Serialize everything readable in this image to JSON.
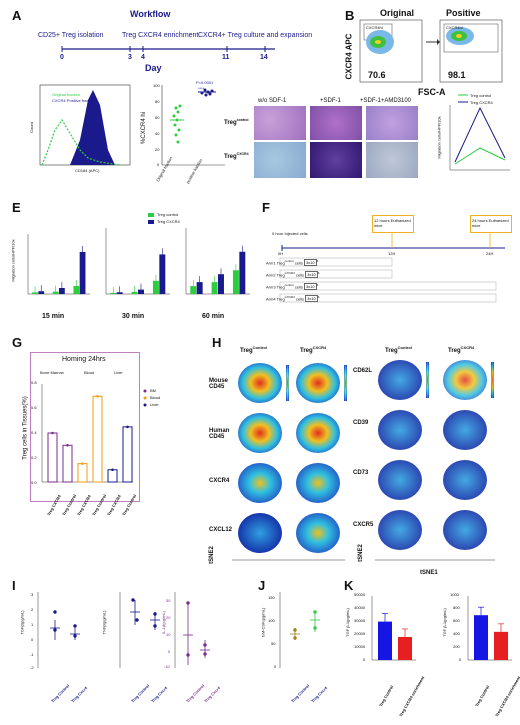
{
  "panels": {
    "A": {
      "label": "A",
      "workflow_title": "Workflow",
      "steps": [
        "CD25+ Treg isolation",
        "Treg CXCR4 enrichment",
        "CXCR4+ Treg culture and expansion"
      ],
      "ticks": [
        "0",
        "3",
        "4",
        "11",
        "14"
      ],
      "axis_label": "Day",
      "hist_legend": [
        "Original fraction",
        "CXCR4 Positive fraction"
      ],
      "hist_xlabel": "CD184 (APC)",
      "hist_ylabel": "Count",
      "scatter_ylabel": "%CXCR4 hi",
      "scatter_pval": "P<0.0001",
      "scatter_sig": "****",
      "scatter_groups": [
        "Original fraction",
        "positive fraction"
      ],
      "scatter_yticks": [
        "100",
        "80",
        "60",
        "40",
        "20",
        "0"
      ]
    },
    "B": {
      "label": "B",
      "titles": [
        "Original",
        "Positive"
      ],
      "ylabel": "CXCR4 APC",
      "xlabel": "FSC-A",
      "percents": [
        "70.6",
        "98.1"
      ],
      "gate_labels": [
        "CXCR4hi",
        "CXCR4hi"
      ],
      "conditions": [
        "w/o SDF-1",
        "+SDF-1",
        "+SDF-1+AMD3100"
      ],
      "row_labels": [
        "Treg",
        "Treg"
      ],
      "row_sups": [
        "control",
        "CXCR4"
      ],
      "legend": [
        "Treg control",
        "Treg CXCR4"
      ],
      "line_ylabel": "Migration cells/HPF/10x"
    },
    "E": {
      "label": "E",
      "legend": [
        "Treg control",
        "Treg CXCR4"
      ],
      "times": [
        "15 min",
        "30 min",
        "60 min"
      ],
      "ylabel": "Migration cells/HPF/10x",
      "sig": [
        "****",
        "****",
        "**",
        "****",
        "*",
        "***",
        "**",
        "*"
      ]
    },
    "F": {
      "label": "F",
      "inject_label": "0 hour Injected cells",
      "t12": "12 hours Euthanized mice",
      "t24": "24 hours Euthanized mice",
      "axis_ticks": [
        "0H",
        "12H",
        "24H"
      ],
      "arms": [
        "Arm1 Treg",
        "Arm2 Treg",
        "Arm3 Treg",
        "Arm4 Treg"
      ],
      "arm_sups": [
        "control",
        "CXCR4",
        "control",
        "CXCR4"
      ],
      "arm_cells": [
        "3x10",
        "3x10",
        "3x10",
        "3x10"
      ],
      "arm_exp": [
        "6",
        "6",
        "6",
        "6"
      ],
      "cells_suffix": "cells"
    },
    "G": {
      "label": "G",
      "title": "Homing 24hrs",
      "groups": [
        "Bone Marrow",
        "Blood",
        "Liver"
      ],
      "legend": [
        "BM",
        "Blood",
        "Liver"
      ],
      "ylabel": "Treg cells in Tissues(%)",
      "yticks": [
        "0.8",
        "0.6",
        "0.4",
        "0.2",
        "0.0"
      ],
      "xlabels": [
        "Treg CXCR4",
        "Treg Control",
        "Treg CXCR4",
        "Treg Control",
        "Treg CXCR4",
        "Treg Control"
      ]
    },
    "H": {
      "label": "H",
      "col_titles": [
        "Treg",
        "Treg",
        "Treg",
        "Treg"
      ],
      "col_sups": [
        "Control",
        "CXCR4",
        "Control",
        "CXCR4"
      ],
      "left_markers": [
        "Mouse CD45",
        "Human CD45",
        "CXCR4",
        "CXCL12"
      ],
      "right_markers": [
        "CD62L",
        "CD39",
        "CD73",
        "CXCR5"
      ],
      "ylabel": "tSNE2",
      "xlabel": "tSNE1"
    },
    "I": {
      "label": "I",
      "ylabels": [
        "TGFβ(pg/mL)",
        "TNFβ(pg/mL)",
        "IL-1β(pg/mL)"
      ],
      "xlabels": [
        "Treg Control",
        "Treg Cxcr4"
      ],
      "yticks_a": [
        "3",
        "2",
        "1",
        "0",
        "-1",
        "-2"
      ],
      "yticks_c": [
        "30",
        "20",
        "10",
        "0",
        "-10"
      ]
    },
    "J": {
      "label": "J",
      "ylabel": "GM-CSF(pg/mL)",
      "xlabels": [
        "Treg Control",
        "Treg Cxcr4"
      ],
      "yticks": [
        "150",
        "100",
        "50",
        "0"
      ]
    },
    "K": {
      "label": "K",
      "ylabels": [
        "TGF β-1(pg/mL)",
        "TGF β-1(pg/mL)"
      ],
      "xlabels": [
        "Treg Control",
        "Treg CXCR4 enrichment"
      ],
      "yticks_a": [
        "50000",
        "40000",
        "30000",
        "20000",
        "10000",
        "0"
      ],
      "yticks_b": [
        "1000",
        "800",
        "600",
        "400",
        "200",
        "0"
      ]
    }
  },
  "colors": {
    "navy": "#1a1a8c",
    "green": "#2ecc40",
    "purple": "#7b2d8b",
    "orange": "#f39c12",
    "blue": "#1515e6",
    "red": "#e62020"
  },
  "chart_data": [
    {
      "type": "bar",
      "panel": "E",
      "title": "15 min",
      "categories": [
        "w/o SDF-1",
        "+SDF-1",
        "+SDF-1+AMD3100"
      ],
      "series": [
        {
          "name": "Treg control",
          "values": [
            8,
            12,
            40
          ]
        },
        {
          "name": "Treg CXCR4",
          "values": [
            14,
            30,
            210
          ]
        }
      ],
      "ylim": [
        0,
        300
      ]
    },
    {
      "type": "bar",
      "panel": "E",
      "title": "30 min",
      "categories": [
        "w/o SDF-1",
        "+SDF-1",
        "+SDF-1+AMD3100"
      ],
      "series": [
        {
          "name": "Treg control",
          "values": [
            5,
            10,
            60
          ]
        },
        {
          "name": "Treg CXCR4",
          "values": [
            8,
            20,
            180
          ]
        }
      ],
      "ylim": [
        0,
        300
      ]
    },
    {
      "type": "bar",
      "panel": "E",
      "title": "60 min",
      "categories": [
        "w/o SDF-1",
        "+SDF-1",
        "+SDF-1+AMD3100"
      ],
      "series": [
        {
          "name": "Treg control",
          "values": [
            60,
            90,
            180
          ]
        },
        {
          "name": "Treg CXCR4",
          "values": [
            90,
            150,
            320
          ]
        }
      ],
      "ylim": [
        0,
        500
      ]
    },
    {
      "type": "bar",
      "panel": "G",
      "title": "Homing 24hrs",
      "categories": [
        "Treg CXCR4",
        "Treg Control",
        "Treg CXCR4",
        "Treg Control",
        "Treg CXCR4",
        "Treg Control"
      ],
      "values": [
        0.4,
        0.3,
        0.15,
        0.7,
        0.1,
        0.45
      ],
      "ylim": [
        0,
        0.8
      ]
    },
    {
      "type": "bar",
      "panel": "K",
      "categories": [
        "Treg Control",
        "Treg CXCR4 enrichment"
      ],
      "values": [
        30000,
        18000
      ],
      "ylim": [
        0,
        50000
      ]
    },
    {
      "type": "bar",
      "panel": "K",
      "categories": [
        "Treg Control",
        "Treg CXCR4 enrichment"
      ],
      "values": [
        700,
        440
      ],
      "ylim": [
        0,
        1000
      ]
    }
  ]
}
